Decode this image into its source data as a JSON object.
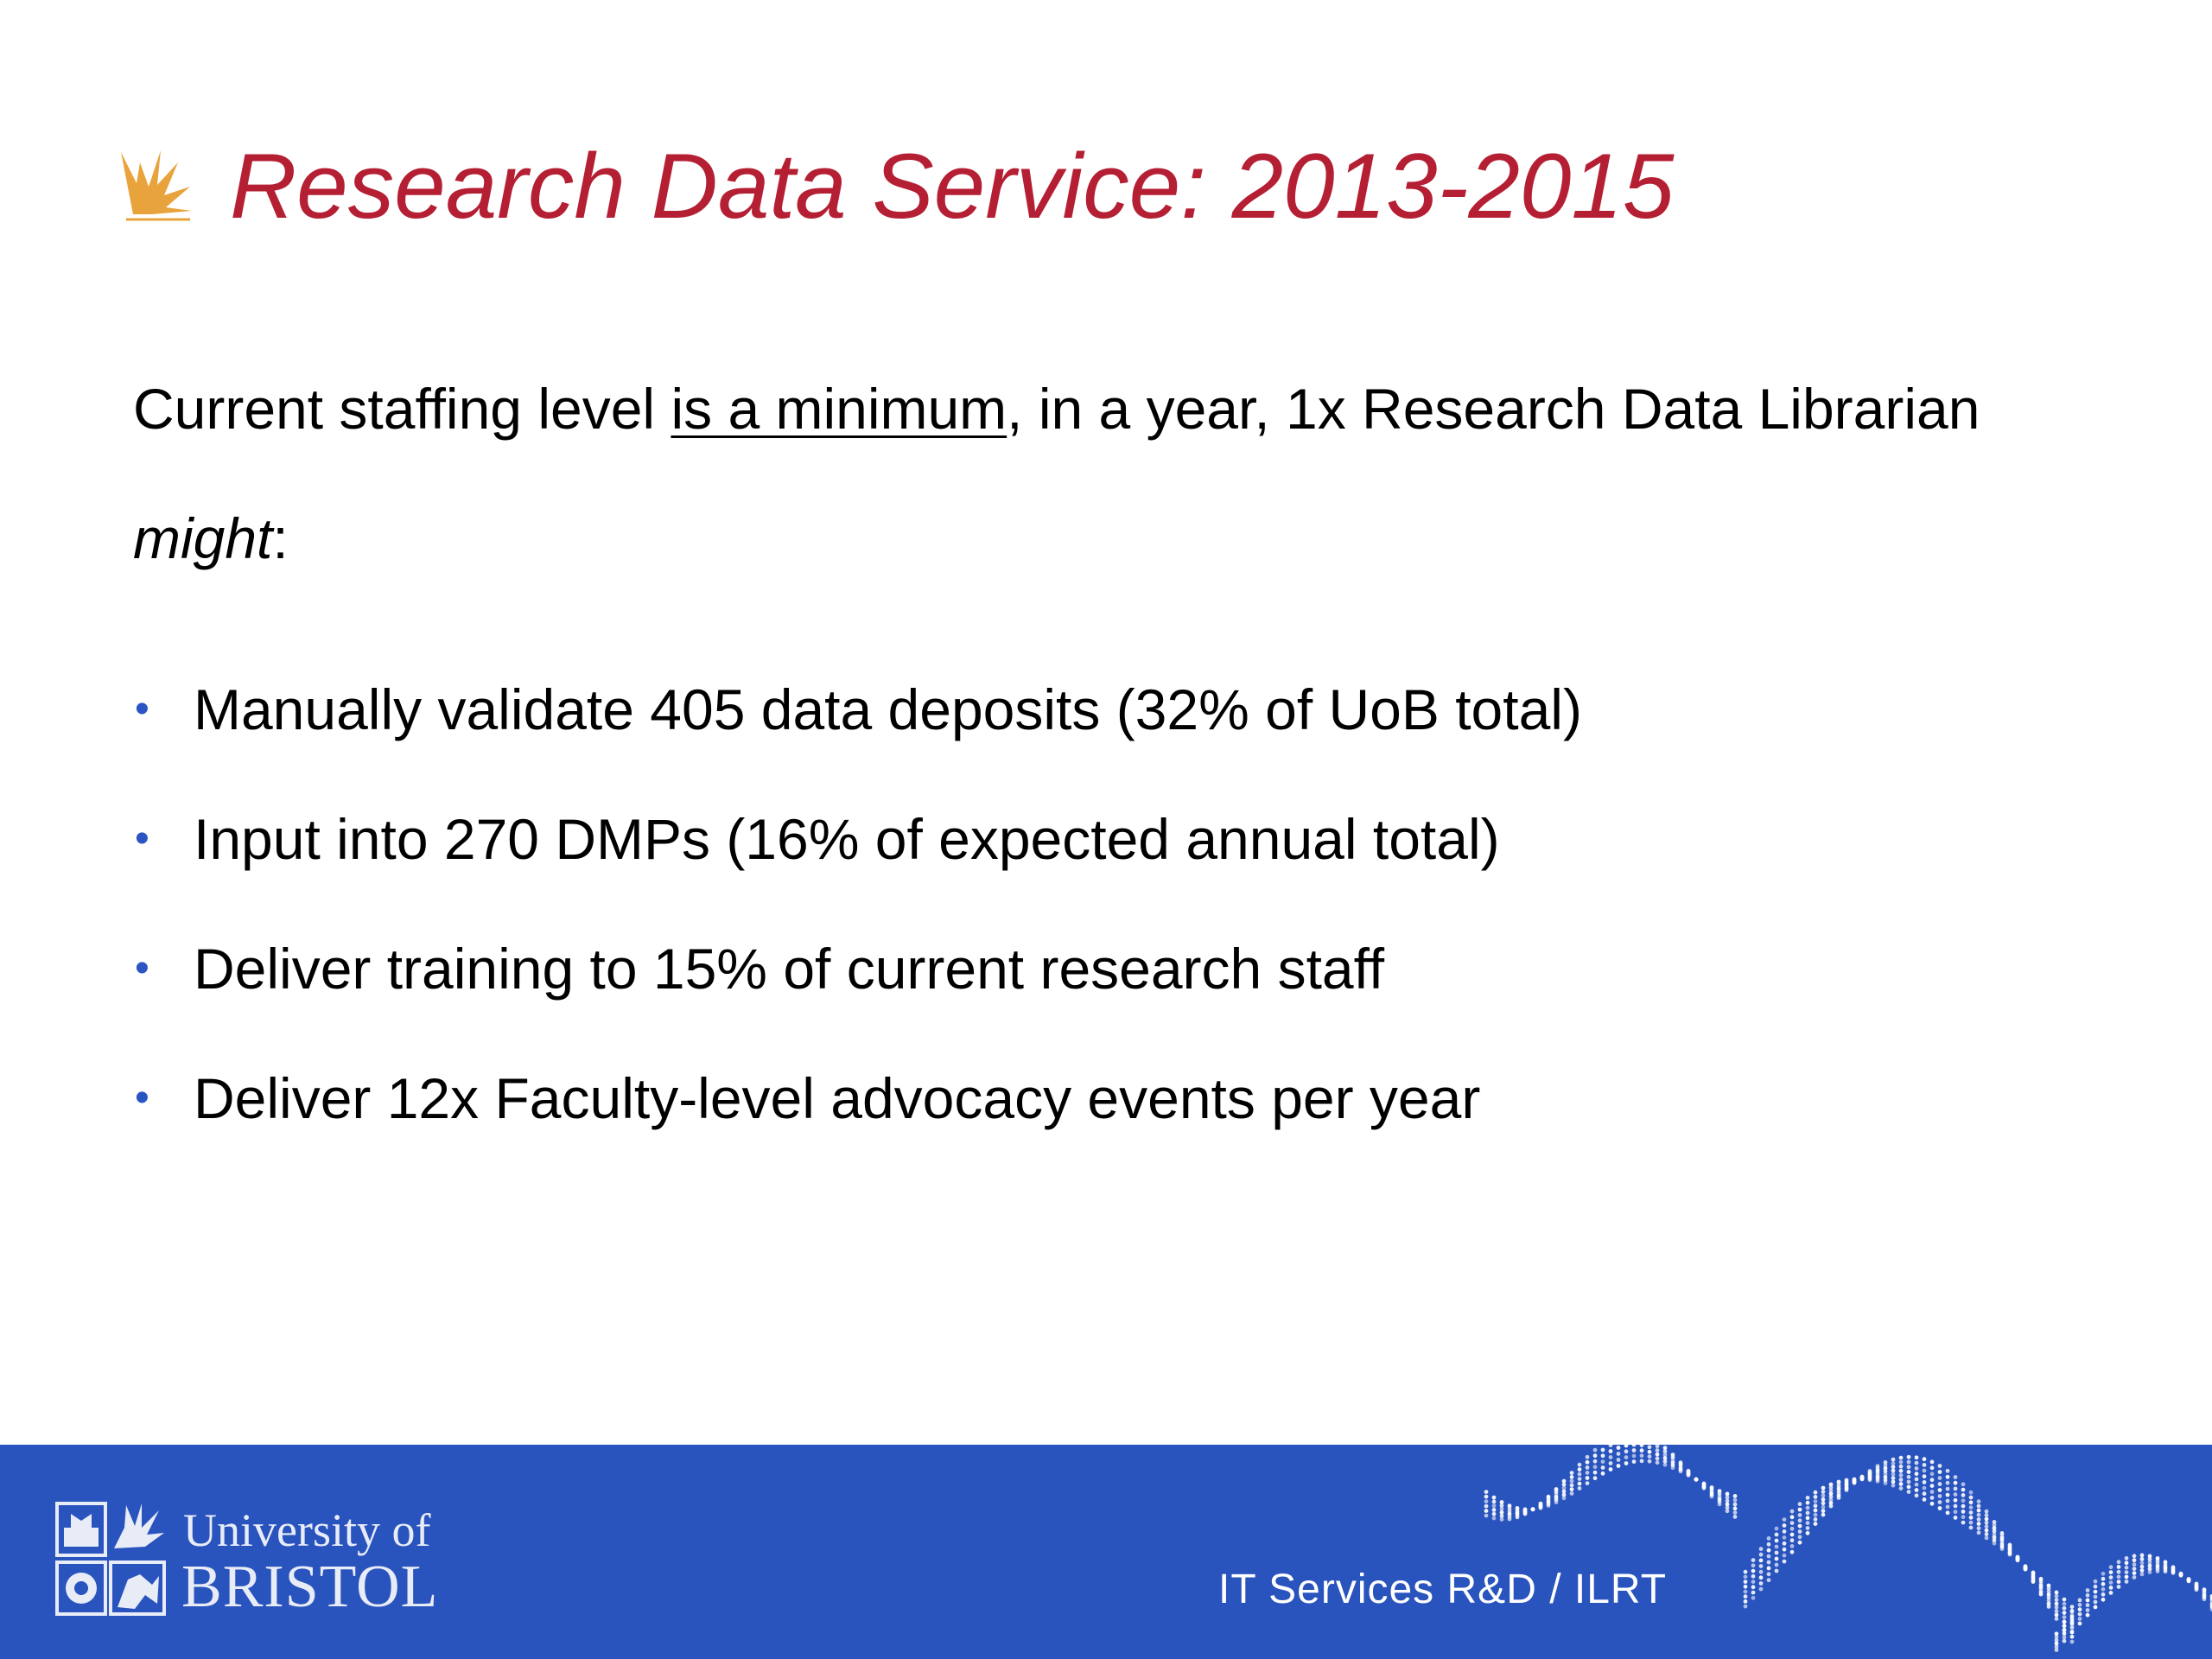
{
  "header": {
    "title": "Research Data Service: 2013-2015",
    "title_color": "#b51f33",
    "icon": "flame-icon"
  },
  "intro": {
    "part1": "Current staffing level ",
    "underlined": "is a minimum",
    "part2": ", in a year, 1x Research Data Librarian ",
    "italic": "might",
    "part3": ":"
  },
  "bullets": [
    "Manually validate 405 data deposits (32% of UoB total)",
    "Input into 270 DMPs (16% of expected annual total)",
    "Deliver training to 15% of current research staff",
    "Deliver 12x Faculty-level advocacy events per year"
  ],
  "footer": {
    "logo_line1": "University of",
    "logo_line2": "BRISTOL",
    "text": "IT Services R&D / ILRT",
    "background": "#2953bd",
    "bullet_color": "#2a55c2"
  }
}
